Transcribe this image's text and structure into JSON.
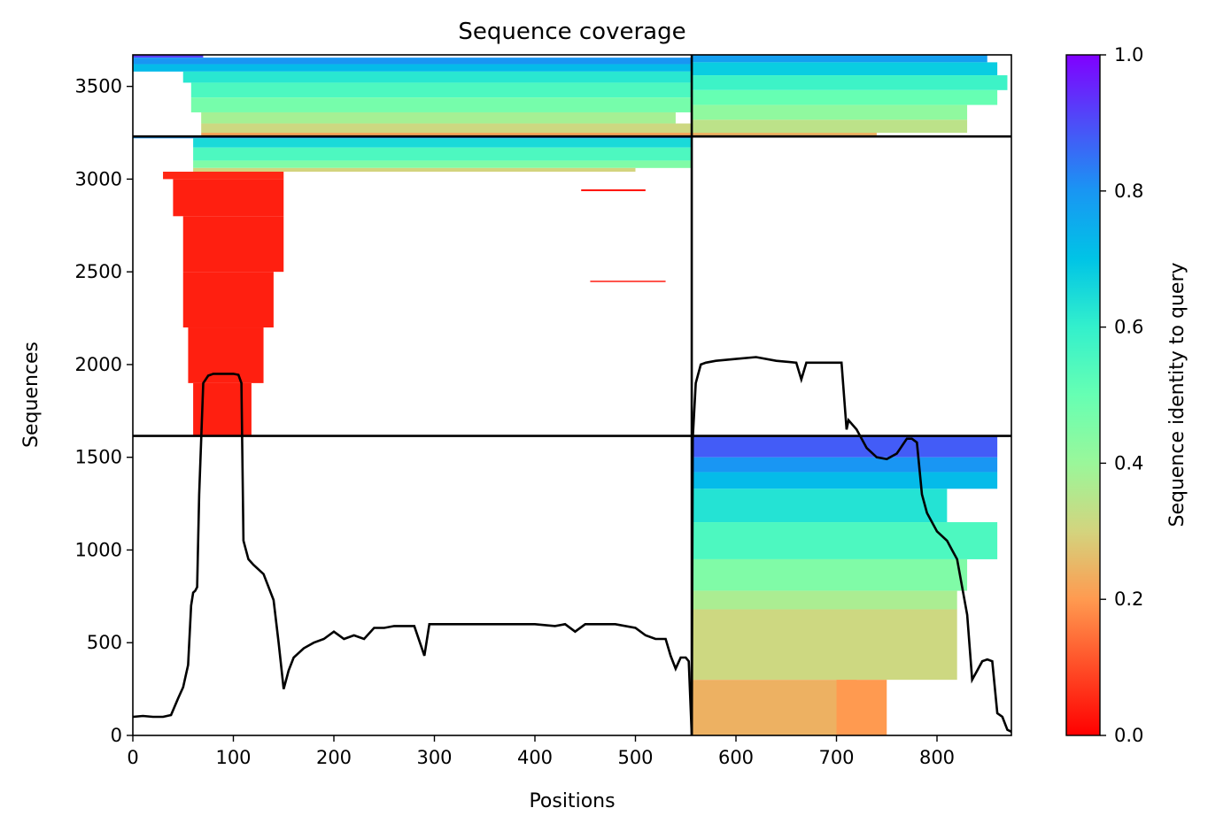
{
  "chart_data": {
    "type": "heatmap",
    "title": "Sequence coverage",
    "xlabel": "Positions",
    "ylabel": "Sequences",
    "xlim": [
      0,
      874
    ],
    "ylim": [
      0,
      3670
    ],
    "x_ticks": [
      0,
      100,
      200,
      300,
      400,
      500,
      600,
      700,
      800
    ],
    "y_ticks": [
      0,
      500,
      1000,
      1500,
      2000,
      2500,
      3000,
      3500
    ],
    "grid": false,
    "colorbar": {
      "label": "Sequence identity to query",
      "range": [
        0,
        1
      ],
      "ticks": [
        0.0,
        0.2,
        0.4,
        0.6,
        0.8,
        1.0
      ],
      "tick_labels": [
        "0.0",
        "0.2",
        "0.4",
        "0.6",
        "0.8",
        "1.0"
      ],
      "colormap": "rainbow_r"
    },
    "boundaries": {
      "vertical_x": [
        556
      ],
      "horizontal_y": [
        1615,
        3230
      ]
    },
    "coverage_blocks": [
      {
        "x": [
          0,
          70
        ],
        "y": [
          3655,
          3670
        ],
        "identity": 0.92
      },
      {
        "x": [
          0,
          556
        ],
        "y": [
          3620,
          3655
        ],
        "identity": 0.8
      },
      {
        "x": [
          0,
          556
        ],
        "y": [
          3580,
          3620
        ],
        "identity": 0.72
      },
      {
        "x": [
          50,
          556
        ],
        "y": [
          3520,
          3580
        ],
        "identity": 0.62
      },
      {
        "x": [
          58,
          556
        ],
        "y": [
          3440,
          3520
        ],
        "identity": 0.55
      },
      {
        "x": [
          58,
          556
        ],
        "y": [
          3360,
          3440
        ],
        "identity": 0.47
      },
      {
        "x": [
          68,
          540
        ],
        "y": [
          3300,
          3360
        ],
        "identity": 0.38
      },
      {
        "x": [
          68,
          556
        ],
        "y": [
          3250,
          3300
        ],
        "identity": 0.31
      },
      {
        "x": [
          68,
          556
        ],
        "y": [
          3230,
          3250
        ],
        "identity": 0.22
      },
      {
        "x": [
          556,
          850
        ],
        "y": [
          3630,
          3670
        ],
        "identity": 0.78
      },
      {
        "x": [
          556,
          860
        ],
        "y": [
          3560,
          3630
        ],
        "identity": 0.68
      },
      {
        "x": [
          556,
          870
        ],
        "y": [
          3480,
          3560
        ],
        "identity": 0.58
      },
      {
        "x": [
          556,
          860
        ],
        "y": [
          3400,
          3480
        ],
        "identity": 0.5
      },
      {
        "x": [
          556,
          830
        ],
        "y": [
          3320,
          3400
        ],
        "identity": 0.42
      },
      {
        "x": [
          556,
          830
        ],
        "y": [
          3250,
          3320
        ],
        "identity": 0.34
      },
      {
        "x": [
          556,
          740
        ],
        "y": [
          3230,
          3250
        ],
        "identity": 0.24
      },
      {
        "x": [
          0,
          556
        ],
        "y": [
          3220,
          3230
        ],
        "identity": 0.8
      },
      {
        "x": [
          60,
          556
        ],
        "y": [
          3170,
          3220
        ],
        "identity": 0.65
      },
      {
        "x": [
          60,
          556
        ],
        "y": [
          3100,
          3170
        ],
        "identity": 0.55
      },
      {
        "x": [
          60,
          556
        ],
        "y": [
          3060,
          3100
        ],
        "identity": 0.45
      },
      {
        "x": [
          60,
          500
        ],
        "y": [
          3040,
          3060
        ],
        "identity": 0.3
      },
      {
        "x": [
          30,
          150
        ],
        "y": [
          3000,
          3040
        ],
        "identity": 0.05
      },
      {
        "x": [
          40,
          150
        ],
        "y": [
          2800,
          3000
        ],
        "identity": 0.04
      },
      {
        "x": [
          50,
          150
        ],
        "y": [
          2500,
          2800
        ],
        "identity": 0.04
      },
      {
        "x": [
          50,
          140
        ],
        "y": [
          2200,
          2500
        ],
        "identity": 0.04
      },
      {
        "x": [
          55,
          130
        ],
        "y": [
          1900,
          2200
        ],
        "identity": 0.04
      },
      {
        "x": [
          60,
          118
        ],
        "y": [
          1615,
          1900
        ],
        "identity": 0.04
      },
      {
        "x": [
          446,
          510
        ],
        "y": [
          2935,
          2945
        ],
        "identity": 0.03
      },
      {
        "x": [
          455,
          530
        ],
        "y": [
          2445,
          2452
        ],
        "identity": 0.03
      },
      {
        "x": [
          556,
          860
        ],
        "y": [
          1500,
          1615
        ],
        "identity": 0.88
      },
      {
        "x": [
          556,
          860
        ],
        "y": [
          1420,
          1500
        ],
        "identity": 0.8
      },
      {
        "x": [
          556,
          860
        ],
        "y": [
          1330,
          1420
        ],
        "identity": 0.72
      },
      {
        "x": [
          556,
          810
        ],
        "y": [
          1150,
          1330
        ],
        "identity": 0.63
      },
      {
        "x": [
          556,
          860
        ],
        "y": [
          950,
          1150
        ],
        "identity": 0.55
      },
      {
        "x": [
          556,
          830
        ],
        "y": [
          780,
          950
        ],
        "identity": 0.45
      },
      {
        "x": [
          556,
          820
        ],
        "y": [
          680,
          780
        ],
        "identity": 0.37
      },
      {
        "x": [
          556,
          820
        ],
        "y": [
          300,
          680
        ],
        "identity": 0.31
      },
      {
        "x": [
          556,
          720
        ],
        "y": [
          0,
          300
        ],
        "identity": 0.24
      },
      {
        "x": [
          700,
          750
        ],
        "y": [
          0,
          300
        ],
        "identity": 0.2
      }
    ],
    "coverage_line": {
      "x": [
        0,
        10,
        20,
        30,
        38,
        45,
        50,
        55,
        58,
        60,
        62,
        64,
        66,
        68,
        70,
        75,
        80,
        90,
        100,
        105,
        108,
        110,
        115,
        120,
        130,
        140,
        145,
        150,
        155,
        160,
        170,
        180,
        190,
        200,
        210,
        220,
        230,
        240,
        250,
        260,
        270,
        280,
        290,
        295,
        300,
        320,
        340,
        360,
        380,
        400,
        420,
        430,
        440,
        450,
        460,
        480,
        500,
        510,
        520,
        530,
        535,
        540,
        545,
        550,
        553,
        556,
        557,
        560,
        565,
        570,
        580,
        600,
        620,
        640,
        660,
        665,
        670,
        680,
        700,
        705,
        710,
        712,
        720,
        730,
        740,
        750,
        760,
        770,
        775,
        780,
        785,
        790,
        800,
        810,
        815,
        820,
        830,
        835,
        840,
        845,
        850,
        855,
        860,
        865,
        870,
        874
      ],
      "y": [
        100,
        105,
        100,
        100,
        110,
        200,
        260,
        380,
        700,
        770,
        780,
        800,
        1300,
        1600,
        1900,
        1940,
        1950,
        1950,
        1950,
        1945,
        1900,
        1050,
        950,
        920,
        870,
        730,
        500,
        250,
        350,
        420,
        470,
        500,
        520,
        560,
        520,
        540,
        520,
        580,
        580,
        590,
        590,
        590,
        430,
        600,
        600,
        600,
        600,
        600,
        600,
        600,
        590,
        600,
        560,
        600,
        600,
        600,
        580,
        540,
        520,
        520,
        430,
        360,
        420,
        420,
        400,
        0,
        1600,
        1900,
        2000,
        2010,
        2020,
        2030,
        2040,
        2020,
        2010,
        1920,
        2010,
        2010,
        2010,
        2010,
        1650,
        1700,
        1650,
        1550,
        1500,
        1490,
        1520,
        1600,
        1600,
        1580,
        1300,
        1200,
        1100,
        1050,
        1000,
        950,
        650,
        300,
        350,
        400,
        410,
        400,
        120,
        100,
        30,
        20
      ]
    }
  }
}
